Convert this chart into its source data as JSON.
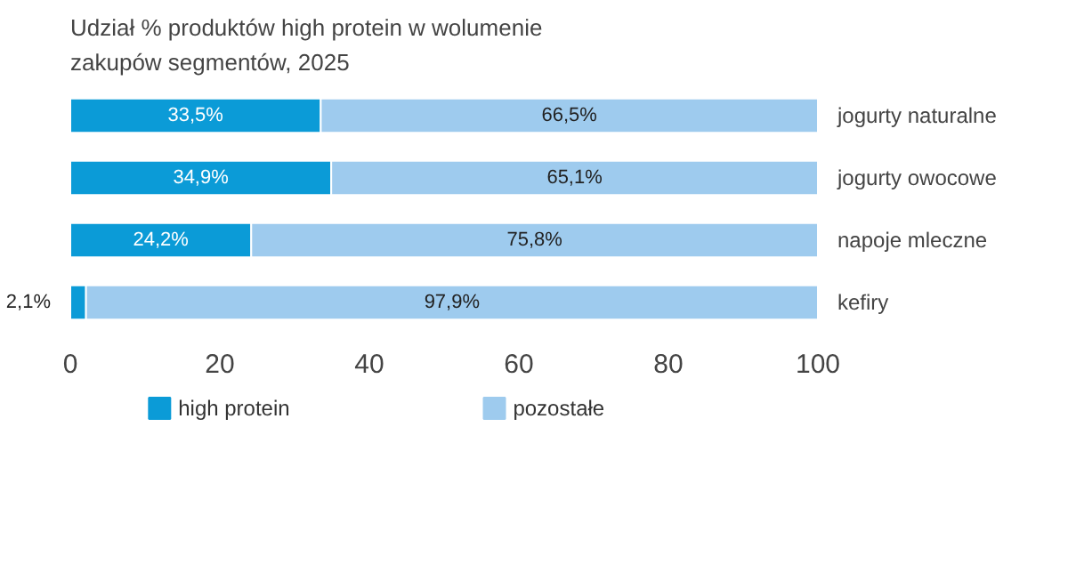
{
  "chart_data": {
    "type": "bar",
    "orientation": "horizontal",
    "stacked": true,
    "title": "Udział % produktów high protein w wolumenie\nzakupów segmentów, 2025",
    "categories": [
      "jogurty naturalne",
      "jogurty owocowe",
      "napoje mleczne",
      "kefiry"
    ],
    "series": [
      {
        "name": "high protein",
        "color": "#0b9bd7",
        "values": [
          33.5,
          34.9,
          24.2,
          2.1
        ],
        "value_labels": [
          "33,5%",
          "34,9%",
          "24,2%",
          "2,1%"
        ]
      },
      {
        "name": "pozostałe",
        "color": "#9ecbee",
        "values": [
          66.5,
          65.1,
          75.8,
          97.9
        ],
        "value_labels": [
          "66,5%",
          "65,1%",
          "75,8%",
          "97,9%"
        ]
      }
    ],
    "xlim": [
      0,
      100
    ],
    "xticks": [
      0,
      20,
      40,
      60,
      80,
      100
    ],
    "grid": false,
    "legend": "bottom"
  }
}
